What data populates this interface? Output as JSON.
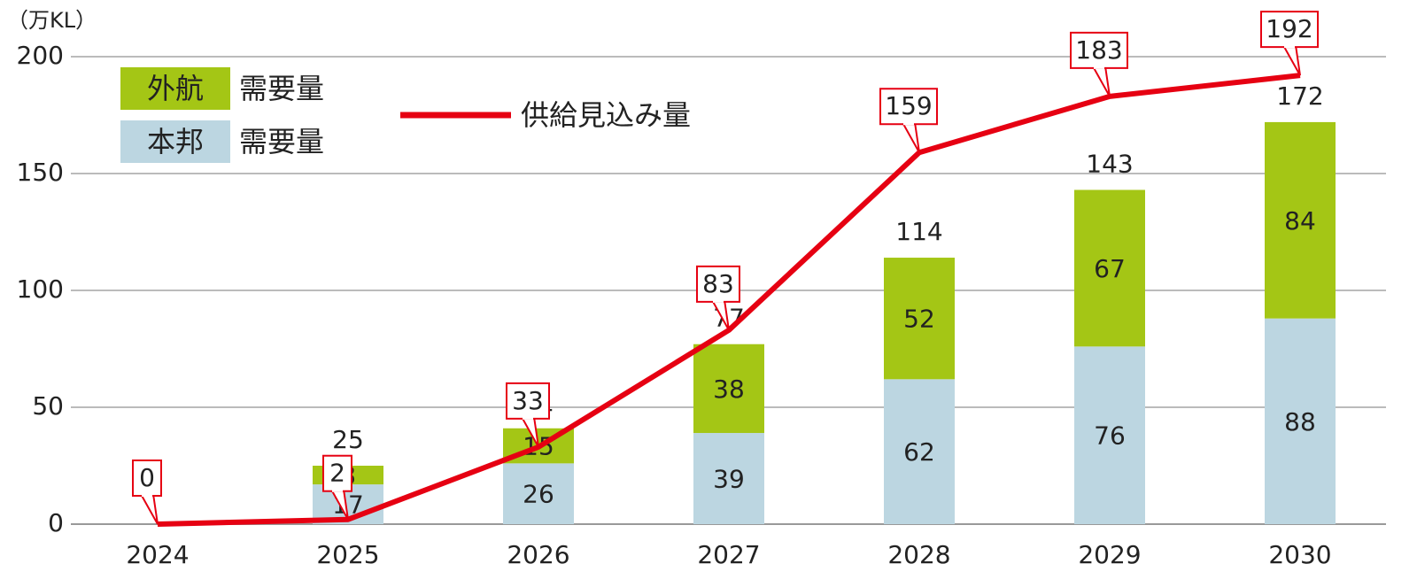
{
  "chart_data": {
    "type": "bar",
    "stacked": true,
    "y_label": "（万KL）",
    "categories": [
      "2024",
      "2025",
      "2026",
      "2027",
      "2028",
      "2029",
      "2030"
    ],
    "series": [
      {
        "name": "本邦",
        "color": "#bcd6e1",
        "values": [
          null,
          17,
          26,
          39,
          62,
          76,
          88
        ]
      },
      {
        "name": "外航",
        "color": "#a4c615",
        "values": [
          null,
          8,
          15,
          38,
          52,
          67,
          84
        ]
      },
      {
        "name": "供給見込み量",
        "type": "line",
        "color": "#e60012",
        "values": [
          0,
          2,
          33,
          83,
          159,
          183,
          192
        ]
      }
    ],
    "totals": [
      null,
      25,
      41,
      77,
      114,
      143,
      172
    ],
    "legend_suffix": "需要量",
    "ylim": [
      0,
      200
    ],
    "yticks": [
      0,
      50,
      100,
      150,
      200
    ],
    "grid": true
  }
}
